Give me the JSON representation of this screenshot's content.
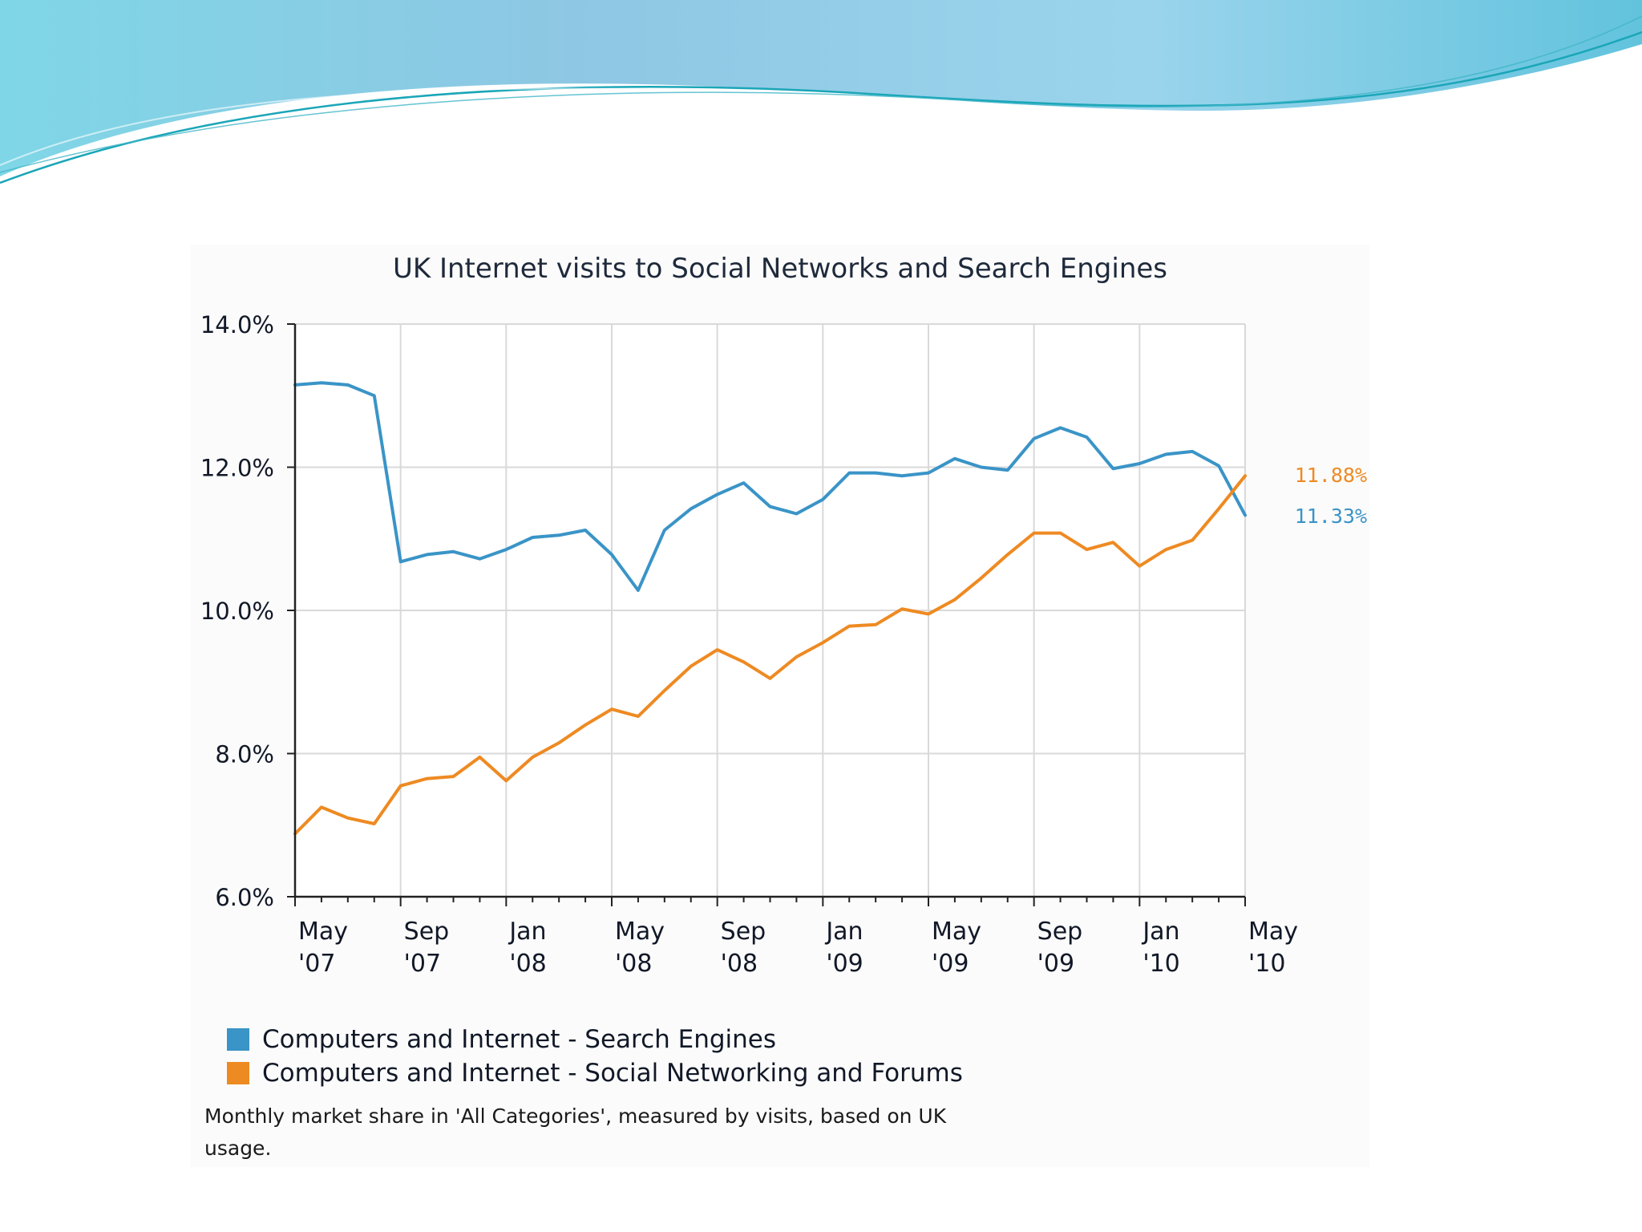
{
  "chart_data": {
    "type": "line",
    "title": "UK Internet visits to Social Networks and Search Engines",
    "x_ticks": [
      {
        "top": "May",
        "bottom": "'07"
      },
      {
        "top": "Sep",
        "bottom": "'07"
      },
      {
        "top": "Jan",
        "bottom": "'08"
      },
      {
        "top": "May",
        "bottom": "'08"
      },
      {
        "top": "Sep",
        "bottom": "'08"
      },
      {
        "top": "Jan",
        "bottom": "'09"
      },
      {
        "top": "May",
        "bottom": "'09"
      },
      {
        "top": "Sep",
        "bottom": "'09"
      },
      {
        "top": "Jan",
        "bottom": "'10"
      },
      {
        "top": "May",
        "bottom": "'10"
      }
    ],
    "x_range": [
      "2007-05",
      "2010-05"
    ],
    "y_range": [
      6.0,
      14.0
    ],
    "y_ticks": [
      "14.0%",
      "12.0%",
      "10.0%",
      "8.0%",
      "6.0%"
    ],
    "y_tick_values": [
      14.0,
      12.0,
      10.0,
      8.0,
      6.0
    ],
    "grid": true,
    "legend_position": "bottom-left",
    "series": [
      {
        "name": "Computers and Internet - Search Engines",
        "color": "#3a94c7",
        "end_label": "11.33%",
        "x": [
          "2007-05",
          "2007-06",
          "2007-07",
          "2007-08",
          "2007-09",
          "2007-10",
          "2007-11",
          "2007-12",
          "2008-01",
          "2008-02",
          "2008-03",
          "2008-04",
          "2008-05",
          "2008-06",
          "2008-07",
          "2008-08",
          "2008-09",
          "2008-10",
          "2008-11",
          "2008-12",
          "2009-01",
          "2009-02",
          "2009-03",
          "2009-04",
          "2009-05",
          "2009-06",
          "2009-07",
          "2009-08",
          "2009-09",
          "2009-10",
          "2009-11",
          "2009-12",
          "2010-01",
          "2010-02",
          "2010-03",
          "2010-04",
          "2010-05"
        ],
        "values": [
          13.15,
          13.18,
          13.15,
          13.0,
          10.68,
          10.78,
          10.82,
          10.72,
          10.85,
          11.02,
          11.05,
          11.12,
          10.78,
          10.28,
          11.12,
          11.42,
          11.62,
          11.78,
          11.45,
          11.35,
          11.55,
          11.92,
          11.92,
          11.88,
          11.92,
          12.12,
          12.0,
          11.96,
          12.4,
          12.55,
          12.42,
          11.98,
          12.05,
          12.18,
          12.22,
          12.02,
          11.33
        ]
      },
      {
        "name": "Computers and Internet - Social Networking and Forums",
        "color": "#ee8a22",
        "end_label": "11.88%",
        "x": [
          "2007-05",
          "2007-06",
          "2007-07",
          "2007-08",
          "2007-09",
          "2007-10",
          "2007-11",
          "2007-12",
          "2008-01",
          "2008-02",
          "2008-03",
          "2008-04",
          "2008-05",
          "2008-06",
          "2008-07",
          "2008-08",
          "2008-09",
          "2008-10",
          "2008-11",
          "2008-12",
          "2009-01",
          "2009-02",
          "2009-03",
          "2009-04",
          "2009-05",
          "2009-06",
          "2009-07",
          "2009-08",
          "2009-09",
          "2009-10",
          "2009-11",
          "2009-12",
          "2010-01",
          "2010-02",
          "2010-03",
          "2010-04",
          "2010-05"
        ],
        "values": [
          6.88,
          7.25,
          7.1,
          7.02,
          7.55,
          7.65,
          7.68,
          7.95,
          7.62,
          7.95,
          8.15,
          8.4,
          8.62,
          8.52,
          8.88,
          9.22,
          9.45,
          9.28,
          9.05,
          9.35,
          9.55,
          9.78,
          9.8,
          10.02,
          9.95,
          10.15,
          10.45,
          10.78,
          11.08,
          11.08,
          10.85,
          10.95,
          10.62,
          10.85,
          10.98,
          11.42,
          11.88
        ]
      }
    ],
    "caption": "Monthly market share in 'All Categories', measured by visits, based on UK usage."
  }
}
